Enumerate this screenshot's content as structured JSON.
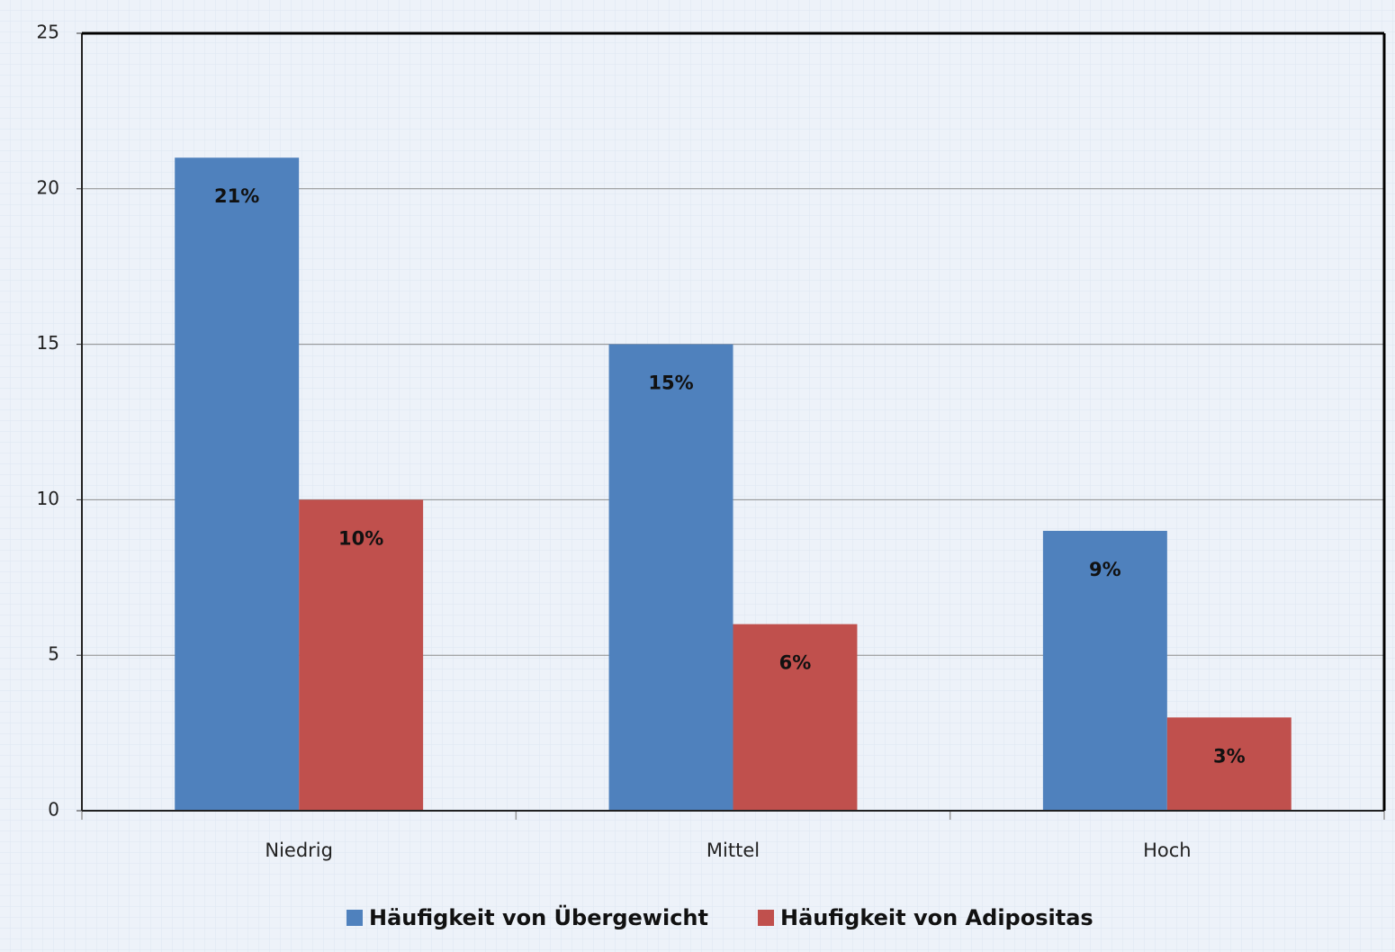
{
  "chart_data": {
    "type": "bar",
    "categories": [
      "Niedrig",
      "Mittel",
      "Hoch"
    ],
    "series": [
      {
        "name": "Häufigkeit von Übergewicht",
        "color": "#4f81bd",
        "values": [
          21,
          15,
          9
        ],
        "value_labels": [
          "21%",
          "15%",
          "9%"
        ]
      },
      {
        "name": "Häufigkeit von Adipositas",
        "color": "#c0504d",
        "values": [
          10,
          6,
          3
        ],
        "value_labels": [
          "10%",
          "6%",
          "3%"
        ]
      }
    ],
    "ylim": [
      0,
      25
    ],
    "yticks": [
      0,
      5,
      10,
      15,
      20,
      25
    ],
    "grid": true,
    "legend": "bottom"
  }
}
